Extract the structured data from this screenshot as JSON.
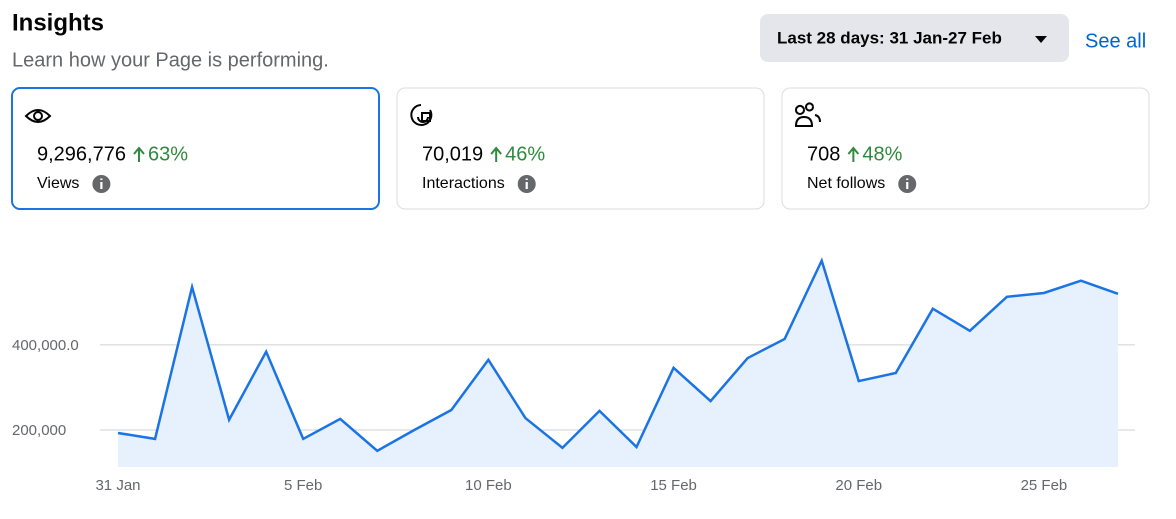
{
  "header": {
    "title": "Insights",
    "subtitle": "Learn how your Page is performing.",
    "date_range": "Last 28 days: 31 Jan-27 Feb",
    "see_all": "See all"
  },
  "metrics": [
    {
      "value": "9,296,776",
      "change": "63%",
      "label": "Views"
    },
    {
      "value": "70,019",
      "change": "46%",
      "label": "Interactions"
    },
    {
      "value": "708",
      "change": "48%",
      "label": "Net follows"
    }
  ],
  "chart_data": {
    "type": "area",
    "categories": [
      "31 Jan",
      null,
      null,
      null,
      null,
      "5 Feb",
      null,
      null,
      null,
      null,
      "10 Feb",
      null,
      null,
      null,
      null,
      "15 Feb",
      null,
      null,
      null,
      null,
      "20 Feb",
      null,
      null,
      null,
      null,
      "25 Feb",
      null,
      null
    ],
    "values": [
      193000,
      179000,
      536000,
      224000,
      384000,
      179000,
      226000,
      151000,
      200000,
      247000,
      365000,
      228000,
      158000,
      245000,
      160000,
      346000,
      268000,
      369000,
      414000,
      598000,
      315000,
      334000,
      485000,
      433000,
      513000,
      522000,
      551000,
      520000
    ],
    "color": "#1b74e4",
    "fill": "#e7f0fd",
    "ylim": [
      113000,
      623000
    ],
    "yticks": [
      {
        "value": 200000,
        "label": "200,000"
      },
      {
        "value": 400000,
        "label": "400,000.0"
      }
    ],
    "grid": true
  }
}
